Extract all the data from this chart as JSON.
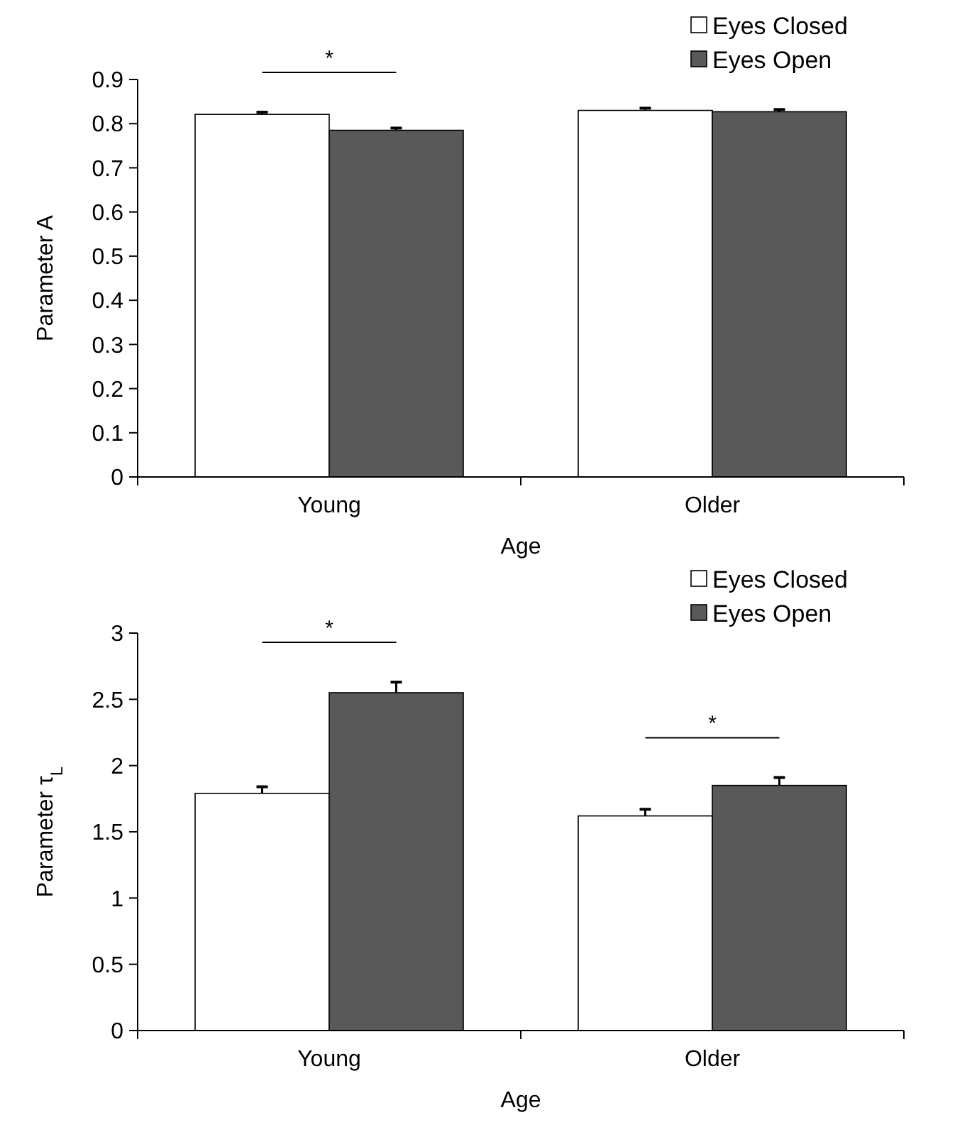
{
  "chart_data": [
    {
      "type": "bar",
      "xlabel": "Age",
      "ylabel": "Parameter A",
      "categories": [
        "Young",
        "Older"
      ],
      "series": [
        {
          "name": "Eyes Closed",
          "color": "#ffffff",
          "values": [
            0.821,
            0.83
          ],
          "errors": [
            0.005,
            0.005
          ]
        },
        {
          "name": "Eyes Open",
          "color": "#595959",
          "values": [
            0.785,
            0.827
          ],
          "errors": [
            0.005,
            0.005
          ]
        }
      ],
      "ylim": [
        0,
        0.9
      ],
      "yticks": [
        0,
        0.1,
        0.2,
        0.3,
        0.4,
        0.5,
        0.6,
        0.7,
        0.8,
        0.9
      ],
      "legend": "top right",
      "grid": false,
      "annotations": [
        "*"
      ]
    },
    {
      "type": "bar",
      "xlabel": "Age",
      "ylabel": "Parameter τ$_{L}$",
      "categories": [
        "Young",
        "Older"
      ],
      "series": [
        {
          "name": "Eyes Closed",
          "color": "#ffffff",
          "values": [
            1.79,
            1.62
          ],
          "errors": [
            0.05,
            0.05
          ]
        },
        {
          "name": "Eyes Open",
          "color": "#595959",
          "values": [
            2.55,
            1.85
          ],
          "errors": [
            0.08,
            0.06
          ]
        }
      ],
      "ylim": [
        0,
        3
      ],
      "yticks": [
        0,
        0.5,
        1,
        1.5,
        2,
        2.5,
        3
      ],
      "legend": "top right",
      "grid": false,
      "annotations": [
        "*",
        "*"
      ]
    }
  ]
}
